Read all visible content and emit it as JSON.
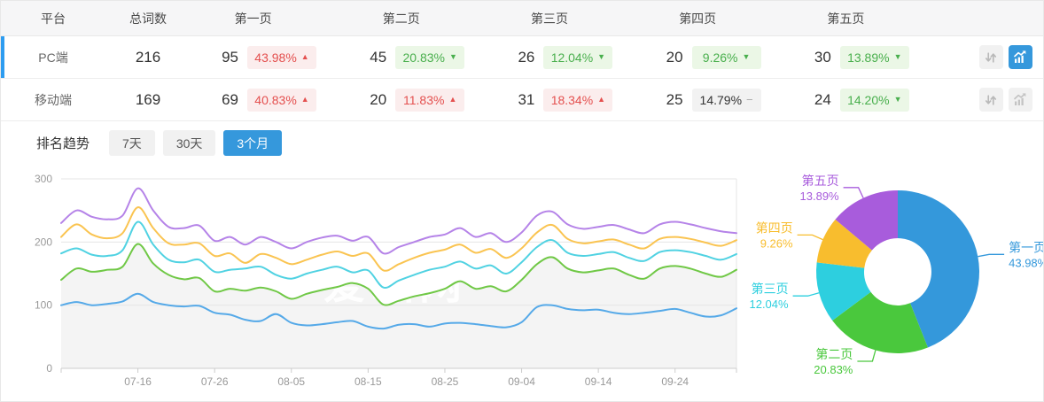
{
  "colors": {
    "accent_blue": "#3598dc",
    "selected_row_bar": "#2d9cf0",
    "red_text": "#e4504f",
    "red_bg": "#fbeded",
    "green_text": "#49af4d",
    "green_bg": "#ebf7e6",
    "flat_bg": "#f2f2f2",
    "header_bg": "#f6f6f7",
    "grid_line": "#e6e6e6",
    "axis_line": "#cccccc",
    "tick_label": "#999999",
    "area_fill": "#f4f4f4",
    "line_palette": [
      "#55a9e8",
      "#70c846",
      "#50d2e2",
      "#fac451",
      "#b583e8"
    ],
    "pie_palette": [
      "#3498db",
      "#4ac83d",
      "#2dcfdf",
      "#f8bd2e",
      "#a85cdc"
    ]
  },
  "table": {
    "headers": [
      "平台",
      "总词数",
      "第一页",
      "第二页",
      "第三页",
      "第四页",
      "第五页"
    ],
    "rows": [
      {
        "platform": "PC端",
        "total": "216",
        "selected": true,
        "sort_icon": "sort-arrows-icon",
        "chart_icon": "trend-chart-icon",
        "chart_icon_active": true,
        "pages": [
          {
            "count": "95",
            "pct": "43.98%",
            "trend": "up"
          },
          {
            "count": "45",
            "pct": "20.83%",
            "trend": "down"
          },
          {
            "count": "26",
            "pct": "12.04%",
            "trend": "down"
          },
          {
            "count": "20",
            "pct": "9.26%",
            "trend": "down"
          },
          {
            "count": "30",
            "pct": "13.89%",
            "trend": "down"
          }
        ]
      },
      {
        "platform": "移动端",
        "total": "169",
        "selected": false,
        "sort_icon": "sort-arrows-icon",
        "chart_icon": "trend-chart-icon",
        "chart_icon_active": false,
        "pages": [
          {
            "count": "69",
            "pct": "40.83%",
            "trend": "up"
          },
          {
            "count": "20",
            "pct": "11.83%",
            "trend": "up"
          },
          {
            "count": "31",
            "pct": "18.34%",
            "trend": "up"
          },
          {
            "count": "25",
            "pct": "14.79%",
            "trend": "flat"
          },
          {
            "count": "24",
            "pct": "14.20%",
            "trend": "down"
          }
        ]
      }
    ]
  },
  "trend_section": {
    "title": "排名趋势",
    "tabs": [
      {
        "label": "7天",
        "active": false
      },
      {
        "label": "30天",
        "active": false
      },
      {
        "label": "3个月",
        "active": true
      }
    ]
  },
  "watermark": "爱站网",
  "chart_data": [
    {
      "type": "line",
      "title": "排名趋势 - 3个月 (PC端, 按页数堆叠累计词数)",
      "stacked_cumulative": true,
      "note": "values are cumulative stacked totals: 第一页, +第二页, +第三页, +第四页, +第五页(总计)",
      "n_points": 45,
      "x_start": "07-06",
      "x_end": "10-02",
      "x_step_days": 2,
      "x_tick_labels": [
        "07-16",
        "07-26",
        "08-05",
        "08-15",
        "08-25",
        "09-04",
        "09-14",
        "09-24"
      ],
      "x_tick_indices": [
        5,
        10,
        15,
        20,
        25,
        30,
        35,
        40
      ],
      "ylim": [
        0,
        300
      ],
      "yticks": [
        0,
        100,
        200,
        300
      ],
      "grid": "horizontal",
      "area_fill_under": "第二页累计",
      "series": [
        {
          "name": "第一页",
          "color": "#55a9e8",
          "values": [
            100,
            105,
            100,
            102,
            106,
            118,
            105,
            100,
            98,
            99,
            88,
            85,
            77,
            75,
            86,
            72,
            68,
            70,
            73,
            75,
            66,
            63,
            69,
            70,
            66,
            71,
            72,
            70,
            67,
            65,
            73,
            97,
            100,
            94,
            92,
            93,
            88,
            86,
            88,
            91,
            94,
            88,
            82,
            84,
            95
          ]
        },
        {
          "name": "第二页累计",
          "color": "#70c846",
          "values": [
            140,
            158,
            153,
            156,
            161,
            197,
            166,
            148,
            141,
            143,
            122,
            126,
            123,
            128,
            122,
            110,
            118,
            124,
            129,
            135,
            126,
            101,
            107,
            114,
            119,
            126,
            138,
            126,
            130,
            122,
            140,
            165,
            176,
            158,
            152,
            155,
            158,
            148,
            142,
            158,
            162,
            158,
            150,
            145,
            156
          ]
        },
        {
          "name": "第三页累计",
          "color": "#50d2e2",
          "values": [
            182,
            190,
            180,
            178,
            187,
            232,
            196,
            172,
            168,
            172,
            153,
            156,
            158,
            161,
            148,
            142,
            150,
            156,
            161,
            152,
            155,
            128,
            139,
            148,
            156,
            161,
            169,
            158,
            163,
            150,
            168,
            192,
            203,
            183,
            178,
            181,
            184,
            175,
            170,
            184,
            187,
            184,
            178,
            172,
            181
          ]
        },
        {
          "name": "第四页累计",
          "color": "#fac451",
          "values": [
            208,
            228,
            212,
            206,
            214,
            255,
            222,
            198,
            196,
            198,
            178,
            182,
            167,
            181,
            175,
            165,
            172,
            180,
            185,
            178,
            182,
            155,
            165,
            175,
            183,
            188,
            196,
            183,
            189,
            175,
            190,
            215,
            227,
            205,
            198,
            201,
            204,
            196,
            190,
            205,
            208,
            205,
            199,
            194,
            203
          ]
        },
        {
          "name": "第五页累计(总计)",
          "color": "#b583e8",
          "values": [
            230,
            250,
            240,
            236,
            242,
            285,
            250,
            224,
            222,
            226,
            202,
            208,
            196,
            208,
            200,
            190,
            200,
            207,
            210,
            202,
            208,
            182,
            192,
            200,
            208,
            212,
            222,
            208,
            214,
            200,
            215,
            242,
            248,
            228,
            221,
            224,
            227,
            220,
            214,
            228,
            232,
            228,
            222,
            217,
            214
          ]
        }
      ]
    },
    {
      "type": "pie",
      "donut": true,
      "start_angle_deg": 0,
      "clockwise": true,
      "unit": "%",
      "slices": [
        {
          "label": "第一页",
          "value": 43.98,
          "color": "#3498db"
        },
        {
          "label": "第二页",
          "value": 20.83,
          "color": "#4ac83d"
        },
        {
          "label": "第三页",
          "value": 12.04,
          "color": "#2dcfdf"
        },
        {
          "label": "第四页",
          "value": 9.26,
          "color": "#f8bd2e"
        },
        {
          "label": "第五页",
          "value": 13.89,
          "color": "#a85cdc"
        }
      ]
    }
  ]
}
